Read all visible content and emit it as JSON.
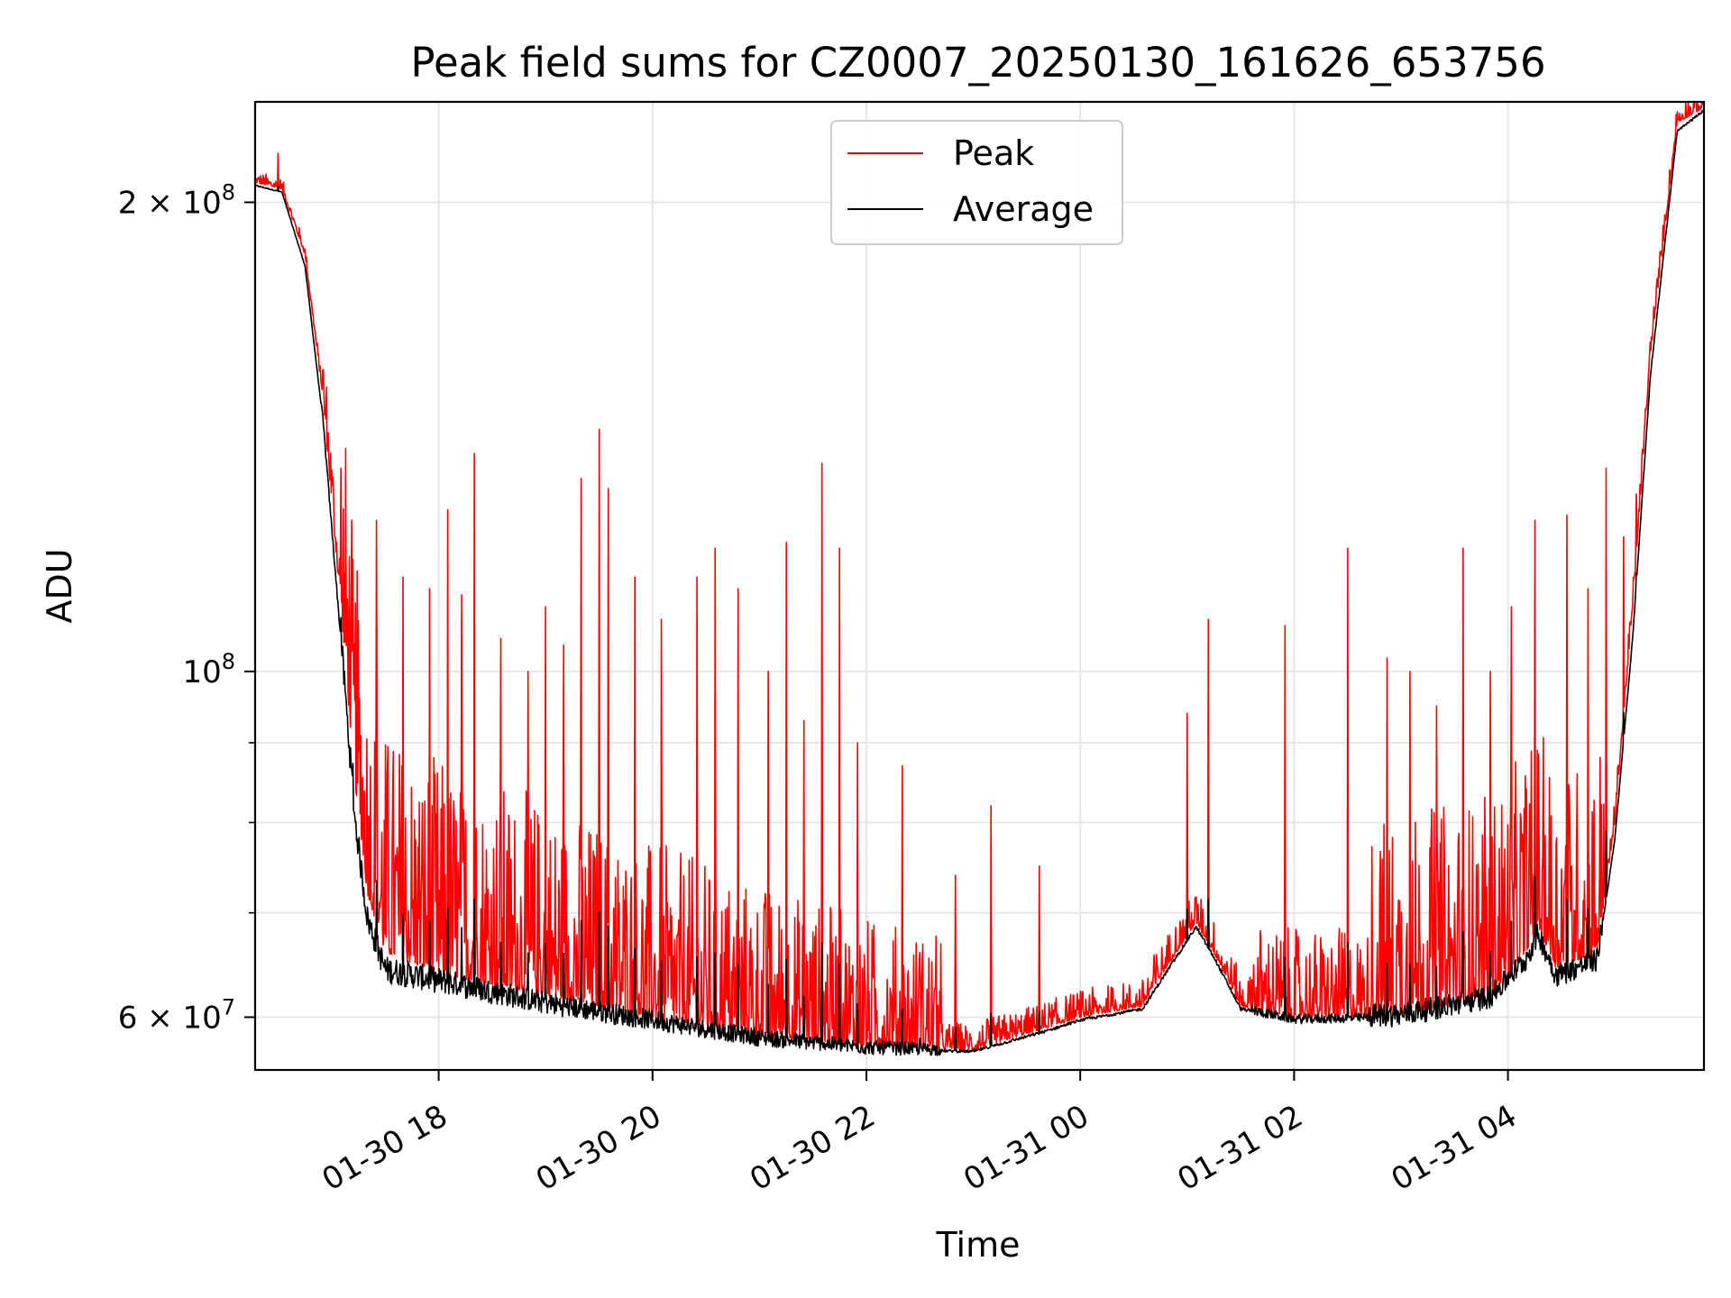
{
  "chart_data": {
    "type": "line",
    "title": "Peak field sums for CZ0007_20250130_161626_653756",
    "xlabel": "Time",
    "ylabel": "ADU",
    "y_scale": "log",
    "ylim": [
      55500000,
      232000000
    ],
    "xlim": [
      "2025-01-30T16:17",
      "2025-01-31T05:50"
    ],
    "grid": true,
    "legend_position": "upper-center",
    "x_ticks": [
      {
        "x": "2025-01-30T18:00",
        "label": "01-30 18"
      },
      {
        "x": "2025-01-30T20:00",
        "label": "01-30 20"
      },
      {
        "x": "2025-01-30T22:00",
        "label": "01-30 22"
      },
      {
        "x": "2025-01-31T00:00",
        "label": "01-31 00"
      },
      {
        "x": "2025-01-31T02:00",
        "label": "01-31 02"
      },
      {
        "x": "2025-01-31T04:00",
        "label": "01-31 04"
      }
    ],
    "y_ticks": [
      {
        "value": 60000000,
        "base": "6 × 10",
        "exp": "7"
      },
      {
        "value": 100000000,
        "base": "10",
        "exp": "8"
      },
      {
        "value": 200000000,
        "base": "2 × 10",
        "exp": "8"
      }
    ],
    "y_minor_ticks": [
      70000000,
      80000000,
      90000000
    ],
    "series": [
      {
        "name": "Peak",
        "color": "#ff0000",
        "baseline": [
          [
            "2025-01-30T16:17",
            206000000
          ],
          [
            "2025-01-30T16:32",
            204000000
          ],
          [
            "2025-01-30T16:45",
            185000000
          ],
          [
            "2025-01-30T16:55",
            150000000
          ],
          [
            "2025-01-30T17:05",
            110000000
          ],
          [
            "2025-01-30T17:13",
            85000000
          ],
          [
            "2025-01-30T17:20",
            72000000
          ],
          [
            "2025-01-30T17:30",
            66000000
          ],
          [
            "2025-01-30T18:00",
            64000000
          ],
          [
            "2025-01-30T19:00",
            62000000
          ],
          [
            "2025-01-30T20:00",
            60000000
          ],
          [
            "2025-01-30T21:00",
            58500000
          ],
          [
            "2025-01-30T22:00",
            57500000
          ],
          [
            "2025-01-30T23:00",
            57200000
          ],
          [
            "2025-01-30T23:40",
            59000000
          ],
          [
            "2025-01-31T00:00",
            60000000
          ],
          [
            "2025-01-31T00:35",
            61000000
          ],
          [
            "2025-01-31T00:50",
            65000000
          ],
          [
            "2025-01-31T01:05",
            69000000
          ],
          [
            "2025-01-31T01:15",
            66000000
          ],
          [
            "2025-01-31T01:30",
            61000000
          ],
          [
            "2025-01-31T02:00",
            60000000
          ],
          [
            "2025-01-31T03:00",
            60200000
          ],
          [
            "2025-01-31T03:50",
            62000000
          ],
          [
            "2025-01-31T04:10",
            66000000
          ],
          [
            "2025-01-31T04:17",
            68500000
          ],
          [
            "2025-01-31T04:27",
            64500000
          ],
          [
            "2025-01-31T04:50",
            66000000
          ],
          [
            "2025-01-31T05:00",
            80000000
          ],
          [
            "2025-01-31T05:10",
            110000000
          ],
          [
            "2025-01-31T05:20",
            160000000
          ],
          [
            "2025-01-31T05:35",
            225000000
          ],
          [
            "2025-01-31T05:50",
            230000000
          ]
        ],
        "spikes": [
          [
            "2025-01-30T16:30",
            215000000
          ],
          [
            "2025-01-30T17:05",
            135000000
          ],
          [
            "2025-01-30T17:12",
            118000000
          ],
          [
            "2025-01-30T17:25",
            125000000
          ],
          [
            "2025-01-30T17:40",
            115000000
          ],
          [
            "2025-01-30T17:55",
            113000000
          ],
          [
            "2025-01-30T18:05",
            127000000
          ],
          [
            "2025-01-30T18:13",
            112000000
          ],
          [
            "2025-01-30T18:20",
            138000000
          ],
          [
            "2025-01-30T18:35",
            105000000
          ],
          [
            "2025-01-30T18:50",
            100000000
          ],
          [
            "2025-01-30T19:00",
            110000000
          ],
          [
            "2025-01-30T19:10",
            104000000
          ],
          [
            "2025-01-30T19:20",
            133000000
          ],
          [
            "2025-01-30T19:30",
            143000000
          ],
          [
            "2025-01-30T19:35",
            131000000
          ],
          [
            "2025-01-30T19:50",
            115000000
          ],
          [
            "2025-01-30T20:05",
            108000000
          ],
          [
            "2025-01-30T20:25",
            115000000
          ],
          [
            "2025-01-30T20:35",
            120000000
          ],
          [
            "2025-01-30T20:48",
            113000000
          ],
          [
            "2025-01-30T21:05",
            100000000
          ],
          [
            "2025-01-30T21:15",
            121000000
          ],
          [
            "2025-01-30T21:25",
            93000000
          ],
          [
            "2025-01-30T21:35",
            136000000
          ],
          [
            "2025-01-30T21:45",
            120000000
          ],
          [
            "2025-01-30T21:55",
            90000000
          ],
          [
            "2025-01-30T22:20",
            87000000
          ],
          [
            "2025-01-30T22:30",
            66000000
          ],
          [
            "2025-01-30T22:50",
            74000000
          ],
          [
            "2025-01-30T23:10",
            82000000
          ],
          [
            "2025-01-30T23:37",
            75000000
          ],
          [
            "2025-01-31T00:05",
            62000000
          ],
          [
            "2025-01-31T01:00",
            94000000
          ],
          [
            "2025-01-31T01:12",
            108000000
          ],
          [
            "2025-01-31T01:55",
            107000000
          ],
          [
            "2025-01-31T02:30",
            120000000
          ],
          [
            "2025-01-31T02:52",
            102000000
          ],
          [
            "2025-01-31T03:05",
            100000000
          ],
          [
            "2025-01-31T03:20",
            95000000
          ],
          [
            "2025-01-31T03:35",
            120000000
          ],
          [
            "2025-01-31T03:50",
            100000000
          ],
          [
            "2025-01-31T04:02",
            110000000
          ],
          [
            "2025-01-31T04:15",
            125000000
          ],
          [
            "2025-01-31T04:33",
            126000000
          ],
          [
            "2025-01-31T04:45",
            113000000
          ],
          [
            "2025-01-31T04:55",
            135000000
          ],
          [
            "2025-01-31T05:05",
            122000000
          ],
          [
            "2025-01-31T05:12",
            130000000
          ]
        ]
      },
      {
        "name": "Average",
        "color": "#000000",
        "baseline": [
          [
            "2025-01-30T16:17",
            205000000
          ],
          [
            "2025-01-30T16:32",
            203000000
          ],
          [
            "2025-01-30T16:45",
            182000000
          ],
          [
            "2025-01-30T16:55",
            145000000
          ],
          [
            "2025-01-30T17:05",
            105000000
          ],
          [
            "2025-01-30T17:13",
            80000000
          ],
          [
            "2025-01-30T17:20",
            69000000
          ],
          [
            "2025-01-30T17:30",
            64000000
          ],
          [
            "2025-01-30T18:00",
            63000000
          ],
          [
            "2025-01-30T19:00",
            61000000
          ],
          [
            "2025-01-30T20:00",
            59500000
          ],
          [
            "2025-01-30T21:00",
            58000000
          ],
          [
            "2025-01-30T22:00",
            57200000
          ],
          [
            "2025-01-30T23:00",
            57000000
          ],
          [
            "2025-01-30T23:40",
            58700000
          ],
          [
            "2025-01-31T00:00",
            59700000
          ],
          [
            "2025-01-31T00:35",
            60700000
          ],
          [
            "2025-01-31T00:50",
            64500000
          ],
          [
            "2025-01-31T01:05",
            68500000
          ],
          [
            "2025-01-31T01:15",
            65500000
          ],
          [
            "2025-01-31T01:30",
            60700000
          ],
          [
            "2025-01-31T02:00",
            59700000
          ],
          [
            "2025-01-31T03:00",
            59900000
          ],
          [
            "2025-01-31T03:50",
            61500000
          ],
          [
            "2025-01-31T04:10",
            65000000
          ],
          [
            "2025-01-31T04:17",
            67500000
          ],
          [
            "2025-01-31T04:27",
            63500000
          ],
          [
            "2025-01-31T04:50",
            65000000
          ],
          [
            "2025-01-31T05:00",
            78000000
          ],
          [
            "2025-01-31T05:10",
            105000000
          ],
          [
            "2025-01-31T05:20",
            155000000
          ],
          [
            "2025-01-31T05:35",
            222000000
          ],
          [
            "2025-01-31T05:50",
            229000000
          ]
        ]
      }
    ]
  }
}
